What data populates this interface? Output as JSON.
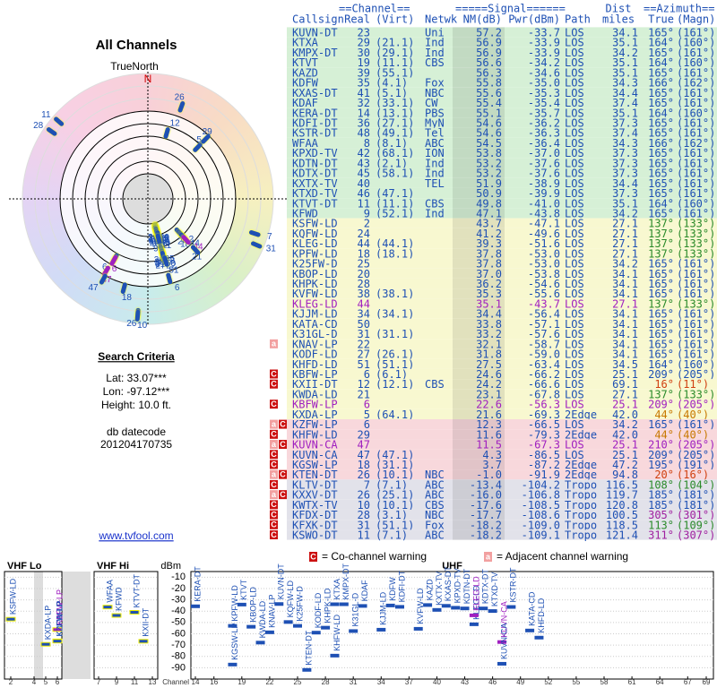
{
  "left": {
    "title": "All Channels",
    "north": "TrueNorth",
    "n": "N",
    "criteria_title": "Search Criteria",
    "criteria": [
      "Lat: 33.07***",
      "Lon: -97.12***",
      "Height: 10.0 ft."
    ],
    "datecode_label": "db datecode",
    "datecode": "201204170735",
    "link": "www.tvfool.com"
  },
  "table": {
    "header_top": [
      "==Channel==",
      "=====Signal======",
      "Dist",
      "==Azimuth=="
    ],
    "header": [
      "Callsign",
      "Real",
      "(Virt)",
      "Netwk",
      "NM(dB)",
      "Pwr(dBm)",
      "Path",
      "miles",
      "True",
      "(Magn)"
    ],
    "rows": [
      {
        "callsign": "KUVN-DT",
        "real": "23",
        "netwk": "Uni",
        "nm": "57.2",
        "pwr": "-33.7",
        "path": "LOS",
        "dist": "34.1",
        "true": "165°",
        "magn": "(161°)",
        "bg": "#d6f0d6"
      },
      {
        "callsign": "KTXA",
        "real": "29",
        "virt": "(21.1)",
        "netwk": "Ind",
        "nm": "56.9",
        "pwr": "-33.9",
        "path": "LOS",
        "dist": "35.1",
        "true": "164°",
        "magn": "(160°)",
        "bg": "#d6f0d6"
      },
      {
        "callsign": "KMPX-DT",
        "real": "30",
        "virt": "(29.1)",
        "netwk": "Ind",
        "nm": "56.9",
        "pwr": "-33.9",
        "path": "LOS",
        "dist": "34.2",
        "true": "165°",
        "magn": "(161°)",
        "bg": "#d6f0d6"
      },
      {
        "callsign": "KTVT",
        "real": "19",
        "virt": "(11.1)",
        "netwk": "CBS",
        "nm": "56.6",
        "pwr": "-34.2",
        "path": "LOS",
        "dist": "35.1",
        "true": "164°",
        "magn": "(160°)",
        "bg": "#d6f0d6"
      },
      {
        "callsign": "KAZD",
        "real": "39",
        "virt": "(55.1)",
        "nm": "56.3",
        "pwr": "-34.6",
        "path": "LOS",
        "dist": "35.1",
        "true": "165°",
        "magn": "(161°)",
        "bg": "#d6f0d6"
      },
      {
        "callsign": "KDFW",
        "real": "35",
        "virt": "(4.1)",
        "netwk": "Fox",
        "nm": "55.8",
        "pwr": "-35.0",
        "path": "LOS",
        "dist": "34.3",
        "true": "166°",
        "magn": "(162°)",
        "bg": "#d6f0d6"
      },
      {
        "callsign": "KXAS-DT",
        "real": "41",
        "virt": "(5.1)",
        "netwk": "NBC",
        "nm": "55.6",
        "pwr": "-35.3",
        "path": "LOS",
        "dist": "34.4",
        "true": "165°",
        "magn": "(161°)",
        "bg": "#d6f0d6"
      },
      {
        "callsign": "KDAF",
        "real": "32",
        "virt": "(33.1)",
        "netwk": "CW",
        "nm": "55.4",
        "pwr": "-35.4",
        "path": "LOS",
        "dist": "37.4",
        "true": "165°",
        "magn": "(161°)",
        "bg": "#d6f0d6"
      },
      {
        "callsign": "KERA-DT",
        "real": "14",
        "virt": "(13.1)",
        "netwk": "PBS",
        "nm": "55.1",
        "pwr": "-35.7",
        "path": "LOS",
        "dist": "35.1",
        "true": "164°",
        "magn": "(160°)",
        "bg": "#d6f0d6"
      },
      {
        "callsign": "KDFI-DT",
        "real": "36",
        "virt": "(27.1)",
        "netwk": "MyN",
        "nm": "54.6",
        "pwr": "-36.2",
        "path": "LOS",
        "dist": "37.3",
        "true": "165°",
        "magn": "(161°)",
        "bg": "#d6f0d6"
      },
      {
        "callsign": "KSTR-DT",
        "real": "48",
        "virt": "(49.1)",
        "netwk": "Tel",
        "nm": "54.6",
        "pwr": "-36.3",
        "path": "LOS",
        "dist": "37.4",
        "true": "165°",
        "magn": "(161°)",
        "bg": "#d6f0d6"
      },
      {
        "callsign": "WFAA",
        "real": "8",
        "virt": "(8.1)",
        "netwk": "ABC",
        "nm": "54.5",
        "pwr": "-36.4",
        "path": "LOS",
        "dist": "34.3",
        "true": "166°",
        "magn": "(162°)",
        "bg": "#d6f0d6"
      },
      {
        "callsign": "KPXD-TV",
        "real": "42",
        "virt": "(68.1)",
        "netwk": "ION",
        "nm": "53.8",
        "pwr": "-37.0",
        "path": "LOS",
        "dist": "37.3",
        "true": "165°",
        "magn": "(161°)",
        "bg": "#d6f0d6"
      },
      {
        "callsign": "KDTN-DT",
        "real": "43",
        "virt": "(2.1)",
        "netwk": "Ind",
        "nm": "53.2",
        "pwr": "-37.6",
        "path": "LOS",
        "dist": "37.3",
        "true": "165°",
        "magn": "(161°)",
        "bg": "#d6f0d6"
      },
      {
        "callsign": "KDTX-DT",
        "real": "45",
        "virt": "(58.1)",
        "netwk": "Ind",
        "nm": "53.2",
        "pwr": "-37.6",
        "path": "LOS",
        "dist": "37.3",
        "true": "165°",
        "magn": "(161°)",
        "bg": "#d6f0d6"
      },
      {
        "callsign": "KXTX-TV",
        "real": "40",
        "netwk": "TEL",
        "nm": "51.9",
        "pwr": "-38.9",
        "path": "LOS",
        "dist": "34.4",
        "true": "165°",
        "magn": "(161°)",
        "bg": "#d6f0d6"
      },
      {
        "callsign": "KTXD-TV",
        "real": "46",
        "virt": "(47.1)",
        "nm": "50.9",
        "pwr": "-39.9",
        "path": "LOS",
        "dist": "37.3",
        "true": "165°",
        "magn": "(161°)",
        "bg": "#d6f0d6"
      },
      {
        "callsign": "KTVT-DT",
        "real": "11",
        "virt": "(11.1)",
        "netwk": "CBS",
        "nm": "49.8",
        "pwr": "-41.0",
        "path": "LOS",
        "dist": "35.1",
        "true": "164°",
        "magn": "(160°)",
        "bg": "#d6f0d6"
      },
      {
        "callsign": "KFWD",
        "real": "9",
        "virt": "(52.1)",
        "netwk": "Ind",
        "nm": "47.1",
        "pwr": "-43.8",
        "path": "LOS",
        "dist": "34.2",
        "true": "165°",
        "magn": "(161°)",
        "bg": "#d6f0d6"
      },
      {
        "callsign": "KSFW-LD",
        "real": "2",
        "nm": "43.7",
        "pwr": "-47.1",
        "path": "LOS",
        "dist": "27.1",
        "true": "137°",
        "magn": "(133°)",
        "bg": "#f8f8d0",
        "az_color": "#2a8a2a"
      },
      {
        "callsign": "KQFW-LD",
        "real": "24",
        "nm": "41.2",
        "pwr": "-49.6",
        "path": "LOS",
        "dist": "27.1",
        "true": "137°",
        "magn": "(133°)",
        "bg": "#f8f8d0",
        "az_color": "#2a8a2a"
      },
      {
        "callsign": "KLEG-LD",
        "real": "44",
        "virt": "(44.1)",
        "nm": "39.3",
        "pwr": "-51.6",
        "path": "LOS",
        "dist": "27.1",
        "true": "137°",
        "magn": "(133°)",
        "bg": "#f8f8d0",
        "az_color": "#2a8a2a"
      },
      {
        "callsign": "KPFW-LD",
        "real": "18",
        "virt": "(18.1)",
        "nm": "37.8",
        "pwr": "-53.0",
        "path": "LOS",
        "dist": "27.1",
        "true": "137°",
        "magn": "(133°)",
        "bg": "#f8f8d0",
        "az_color": "#2a8a2a"
      },
      {
        "callsign": "K25FW-D",
        "real": "25",
        "nm": "37.8",
        "pwr": "-53.0",
        "path": "LOS",
        "dist": "34.2",
        "true": "165°",
        "magn": "(161°)",
        "bg": "#f8f8d0"
      },
      {
        "callsign": "KBOP-LD",
        "real": "20",
        "nm": "37.0",
        "pwr": "-53.8",
        "path": "LOS",
        "dist": "34.1",
        "true": "165°",
        "magn": "(161°)",
        "bg": "#f8f8d0"
      },
      {
        "callsign": "KHPK-LD",
        "real": "28",
        "nm": "36.2",
        "pwr": "-54.6",
        "path": "LOS",
        "dist": "34.1",
        "true": "165°",
        "magn": "(161°)",
        "bg": "#f8f8d0"
      },
      {
        "callsign": "KVFW-LD",
        "real": "38",
        "virt": "(38.1)",
        "nm": "35.3",
        "pwr": "-55.6",
        "path": "LOS",
        "dist": "34.1",
        "true": "165°",
        "magn": "(161°)",
        "bg": "#f8f8d0"
      },
      {
        "callsign": "KLEG-LD",
        "real": "44",
        "nm": "35.1",
        "pwr": "-43.7",
        "path": "LOS",
        "dist": "27.1",
        "true": "137°",
        "magn": "(133°)",
        "bg": "#f8f8d0",
        "color": "#a020c0",
        "az_color": "#2a8a2a"
      },
      {
        "callsign": "KJJM-LD",
        "real": "34",
        "virt": "(34.1)",
        "nm": "34.4",
        "pwr": "-56.4",
        "path": "LOS",
        "dist": "34.1",
        "true": "165°",
        "magn": "(161°)",
        "bg": "#f8f8d0"
      },
      {
        "callsign": "KATA-CD",
        "real": "50",
        "nm": "33.8",
        "pwr": "-57.1",
        "path": "LOS",
        "dist": "34.1",
        "true": "165°",
        "magn": "(161°)",
        "bg": "#f8f8d0"
      },
      {
        "callsign": "K31GL-D",
        "real": "31",
        "virt": "(31.1)",
        "nm": "33.2",
        "pwr": "-57.6",
        "path": "LOS",
        "dist": "34.1",
        "true": "165°",
        "magn": "(161°)",
        "bg": "#f8f8d0"
      },
      {
        "callsign": "KNAV-LP",
        "real": "22",
        "nm": "32.1",
        "pwr": "-58.7",
        "path": "LOS",
        "dist": "34.1",
        "true": "165°",
        "magn": "(161°)",
        "bg": "#f8f8d0",
        "warn": [
          "a"
        ]
      },
      {
        "callsign": "KODF-LD",
        "real": "27",
        "virt": "(26.1)",
        "nm": "31.8",
        "pwr": "-59.0",
        "path": "LOS",
        "dist": "34.1",
        "true": "165°",
        "magn": "(161°)",
        "bg": "#f8f8d0"
      },
      {
        "callsign": "KHFD-LD",
        "real": "51",
        "virt": "(51.1)",
        "nm": "27.5",
        "pwr": "-63.4",
        "path": "LOS",
        "dist": "34.5",
        "true": "164°",
        "magn": "(160°)",
        "bg": "#f8f8d0"
      },
      {
        "callsign": "KBFW-LP",
        "real": "6",
        "virt": "(6.1)",
        "nm": "24.6",
        "pwr": "-66.2",
        "path": "LOS",
        "dist": "25.1",
        "true": "209°",
        "magn": "(205°)",
        "bg": "#f8f8d0",
        "warn": [
          "C"
        ]
      },
      {
        "callsign": "KXII-DT",
        "real": "12",
        "virt": "(12.1)",
        "netwk": "CBS",
        "nm": "24.2",
        "pwr": "-66.6",
        "path": "LOS",
        "dist": "69.1",
        "true": "16°",
        "magn": "(11°)",
        "bg": "#f8f8d0",
        "az_color": "#d04010",
        "warn": [
          "C"
        ]
      },
      {
        "callsign": "KWDA-LD",
        "real": "21",
        "nm": "23.1",
        "pwr": "-67.8",
        "path": "LOS",
        "dist": "27.1",
        "true": "137°",
        "magn": "(133°)",
        "bg": "#f8f8d0",
        "az_color": "#2a8a2a"
      },
      {
        "callsign": "KBFW-LP",
        "real": "6",
        "nm": "22.6",
        "pwr": "-56.3",
        "path": "LOS",
        "dist": "25.1",
        "true": "209°",
        "magn": "(205°)",
        "bg": "#f8f8d0",
        "color": "#a020c0",
        "warn": [
          "C"
        ]
      },
      {
        "callsign": "KXDA-LP",
        "real": "5",
        "virt": "(64.1)",
        "nm": "21.6",
        "pwr": "-69.3",
        "path": "2Edge",
        "dist": "42.0",
        "true": "44°",
        "magn": "(40°)",
        "bg": "#f8f8d0",
        "az_color": "#c87800"
      },
      {
        "callsign": "KZFW-LP",
        "real": "6",
        "nm": "12.3",
        "pwr": "-66.5",
        "path": "LOS",
        "dist": "34.2",
        "true": "165°",
        "magn": "(161°)",
        "bg": "#f8d8dc",
        "warn": [
          "a",
          "C"
        ]
      },
      {
        "callsign": "KHFW-LD",
        "real": "29",
        "nm": "11.6",
        "pwr": "-79.3",
        "path": "2Edge",
        "dist": "42.0",
        "true": "44°",
        "magn": "(40°)",
        "bg": "#f8d8dc",
        "az_color": "#c87800",
        "warn": [
          "C"
        ]
      },
      {
        "callsign": "KUVN-CA",
        "real": "47",
        "nm": "11.5",
        "pwr": "-67.3",
        "path": "LOS",
        "dist": "25.1",
        "true": "210°",
        "magn": "(205°)",
        "bg": "#f8d8dc",
        "color": "#a020c0",
        "warn": [
          "a",
          "C"
        ]
      },
      {
        "callsign": "KUVN-CA",
        "real": "47",
        "virt": "(47.1)",
        "nm": "4.3",
        "pwr": "-86.5",
        "path": "LOS",
        "dist": "25.1",
        "true": "209°",
        "magn": "(205°)",
        "bg": "#f8d8dc",
        "warn": [
          "C"
        ]
      },
      {
        "callsign": "KGSW-LP",
        "real": "18",
        "virt": "(31.1)",
        "nm": "3.7",
        "pwr": "-87.2",
        "path": "2Edge",
        "dist": "47.2",
        "true": "195°",
        "magn": "(191°)",
        "bg": "#f8d8dc",
        "warn": [
          "C"
        ]
      },
      {
        "callsign": "KTEN-DT",
        "real": "26",
        "virt": "(10.1)",
        "netwk": "NBC",
        "nm": "-1.0",
        "pwr": "-91.9",
        "path": "2Edge",
        "dist": "94.8",
        "true": "20°",
        "magn": "(16°)",
        "bg": "#f8d8dc",
        "az_color": "#d04010",
        "warn": [
          "a",
          "C"
        ]
      },
      {
        "callsign": "KLTV-DT",
        "real": "7",
        "virt": "(7.1)",
        "netwk": "ABC",
        "nm": "-13.4",
        "pwr": "-104.2",
        "path": "Tropo",
        "dist": "116.5",
        "true": "108°",
        "magn": "(104°)",
        "bg": "#e2e2ea",
        "az_color": "#2a8a2a",
        "warn": [
          "C"
        ]
      },
      {
        "callsign": "KXXV-DT",
        "real": "26",
        "virt": "(25.1)",
        "netwk": "ABC",
        "nm": "-16.0",
        "pwr": "-106.8",
        "path": "Tropo",
        "dist": "119.7",
        "true": "185°",
        "magn": "(181°)",
        "bg": "#e2e2ea",
        "warn": [
          "a",
          "C"
        ]
      },
      {
        "callsign": "KWTX-TV",
        "real": "10",
        "virt": "(10.1)",
        "netwk": "CBS",
        "nm": "-17.6",
        "pwr": "-108.5",
        "path": "Tropo",
        "dist": "120.8",
        "true": "185°",
        "magn": "(181°)",
        "bg": "#e2e2ea",
        "warn": [
          "C"
        ]
      },
      {
        "callsign": "KFDX-DT",
        "real": "28",
        "virt": "(3.1)",
        "netwk": "NBC",
        "nm": "-17.7",
        "pwr": "-108.6",
        "path": "Tropo",
        "dist": "100.5",
        "true": "305°",
        "magn": "(301°)",
        "bg": "#e2e2ea",
        "az_color": "#a020a0",
        "warn": [
          "C"
        ]
      },
      {
        "callsign": "KFXK-DT",
        "real": "31",
        "virt": "(51.1)",
        "netwk": "Fox",
        "nm": "-18.2",
        "pwr": "-109.0",
        "path": "Tropo",
        "dist": "118.5",
        "true": "113°",
        "magn": "(109°)",
        "bg": "#e2e2ea",
        "az_color": "#2a8a2a",
        "warn": [
          "C"
        ]
      },
      {
        "callsign": "KSWO-DT",
        "real": "11",
        "virt": "(7.1)",
        "netwk": "ABC",
        "nm": "-18.2",
        "pwr": "-109.1",
        "path": "Tropo",
        "dist": "121.4",
        "true": "311°",
        "magn": "(307°)",
        "bg": "#e2e2ea",
        "az_color": "#a020a0",
        "warn": [
          "C"
        ]
      }
    ]
  },
  "legend": [
    {
      "icon": "C",
      "text": "= Co-channel warning"
    },
    {
      "icon": "a",
      "text": "= Adjacent channel warning"
    }
  ],
  "spectrum": {
    "ylabel": "dBm",
    "xlabel": "Channel",
    "ylim": [
      -100,
      -5
    ],
    "yticks": [
      -10,
      -20,
      -30,
      -40,
      -50,
      -60,
      -70,
      -80,
      -90
    ],
    "bands": [
      {
        "name": "VHF Lo",
        "xlim": [
          2,
          6
        ],
        "xticks": [
          2,
          4,
          5,
          6
        ]
      },
      {
        "name": "VHF Hi",
        "xlim": [
          7,
          13
        ],
        "xticks": [
          7,
          9,
          11,
          13
        ]
      },
      {
        "name": "UHF",
        "xlim": [
          14,
          69
        ],
        "xticks": [
          14,
          16,
          19,
          22,
          25,
          28,
          31,
          34,
          37,
          40,
          43,
          46,
          49,
          52,
          55,
          58,
          61,
          64,
          67,
          69
        ]
      }
    ]
  }
}
